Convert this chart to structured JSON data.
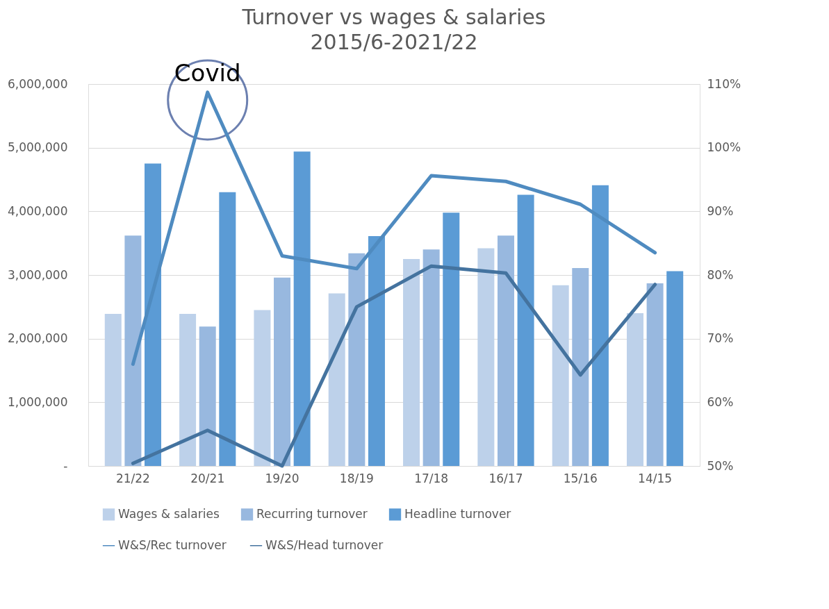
{
  "chart_data": {
    "type": "bar",
    "title": "Turnover vs wages & salaries",
    "subtitle": "2015/6-2021/22",
    "categories": [
      "21/22",
      "20/21",
      "19/20",
      "18/19",
      "17/18",
      "16/17",
      "15/16",
      "14/15"
    ],
    "series": [
      {
        "name": "Wages & salaries",
        "color": "#bdd1ea",
        "values": [
          2390000,
          2390000,
          2450000,
          2710000,
          3250000,
          3420000,
          2840000,
          2400000
        ]
      },
      {
        "name": "Recurring turnover",
        "color": "#98b8df",
        "values": [
          3620000,
          2190000,
          2960000,
          3340000,
          3400000,
          3620000,
          3110000,
          2870000
        ]
      },
      {
        "name": "Headline turnover",
        "color": "#5b9bd5",
        "values": [
          4750000,
          4300000,
          4940000,
          3610000,
          3980000,
          4260000,
          4410000,
          3060000
        ]
      },
      {
        "name": "W&S/Rec turnover",
        "color": "#4f8bc0",
        "type": "line",
        "axis": "y2",
        "values": [
          66.0,
          108.7,
          83.0,
          81.0,
          95.6,
          94.7,
          91.1,
          83.5
        ]
      },
      {
        "name": "W&S/Head turnover",
        "color": "#44739f",
        "type": "line",
        "axis": "y2",
        "values": [
          50.4,
          55.6,
          50.0,
          75.0,
          81.4,
          80.3,
          64.3,
          78.5
        ]
      }
    ],
    "ylim": [
      0,
      6000000
    ],
    "yticks": [
      {
        "value": 0,
        "label": "-"
      },
      {
        "value": 1000000,
        "label": "1,000,000"
      },
      {
        "value": 2000000,
        "label": "2,000,000"
      },
      {
        "value": 3000000,
        "label": "3,000,000"
      },
      {
        "value": 4000000,
        "label": "4,000,000"
      },
      {
        "value": 5000000,
        "label": "5,000,000"
      },
      {
        "value": 6000000,
        "label": "6,000,000"
      }
    ],
    "y2lim": [
      50,
      110
    ],
    "y2ticks": [
      {
        "value": 50,
        "label": "50%"
      },
      {
        "value": 60,
        "label": "60%"
      },
      {
        "value": 70,
        "label": "70%"
      },
      {
        "value": 80,
        "label": "80%"
      },
      {
        "value": 90,
        "label": "90%"
      },
      {
        "value": 100,
        "label": "100%"
      },
      {
        "value": 110,
        "label": "110%"
      }
    ],
    "annotations": [
      {
        "text": "Covid",
        "x": "20/21",
        "y": 5750000
      }
    ],
    "grid": "y",
    "legend": "bottom",
    "line_style": "solid"
  }
}
